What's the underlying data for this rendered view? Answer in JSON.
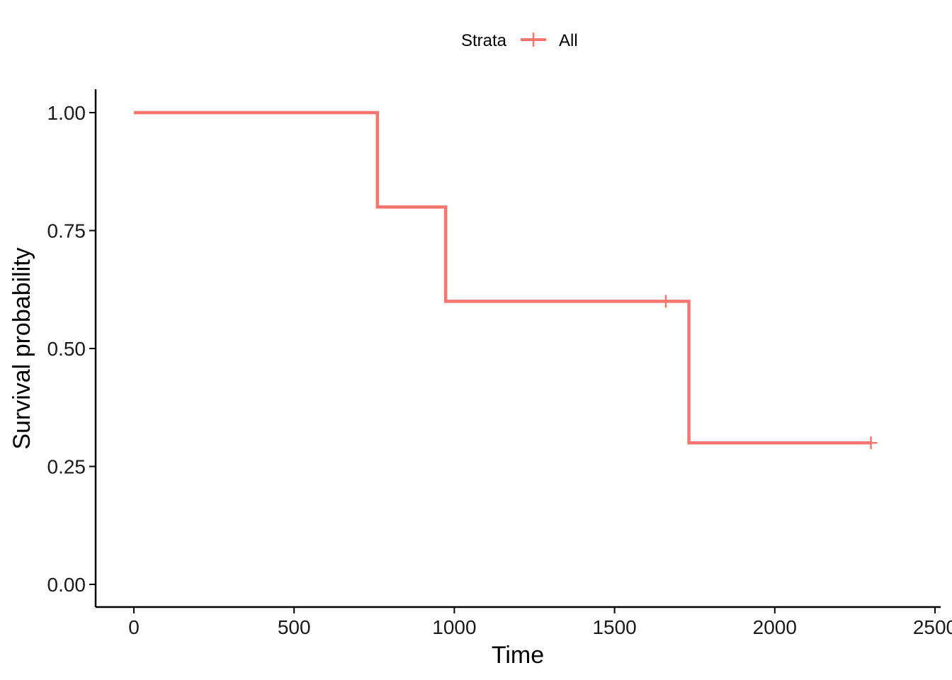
{
  "chart_data": {
    "type": "line",
    "subtype": "kaplan-meier step",
    "xlabel": "Time",
    "ylabel": "Survival probability",
    "xlim": [
      -120,
      2500
    ],
    "ylim": [
      -0.05,
      1.05
    ],
    "x_ticks": [
      0,
      500,
      1000,
      1500,
      2000,
      2500
    ],
    "x_tick_labels": [
      "0",
      "500",
      "1000",
      "1500",
      "2000",
      "2500"
    ],
    "y_ticks": [
      0.0,
      0.25,
      0.5,
      0.75,
      1.0
    ],
    "y_tick_labels": [
      "0.00",
      "0.25",
      "0.50",
      "0.75",
      "1.00"
    ],
    "grid": false,
    "legend": {
      "title": "Strata",
      "position": "top",
      "entries": [
        "All"
      ]
    },
    "series": [
      {
        "name": "All",
        "color": "#F8766D",
        "step_points": [
          {
            "x": 0,
            "y": 1.0
          },
          {
            "x": 760,
            "y": 1.0
          },
          {
            "x": 760,
            "y": 0.8
          },
          {
            "x": 973,
            "y": 0.8
          },
          {
            "x": 973,
            "y": 0.6
          },
          {
            "x": 1732,
            "y": 0.6
          },
          {
            "x": 1732,
            "y": 0.3
          },
          {
            "x": 2300,
            "y": 0.3
          }
        ],
        "censored": [
          {
            "x": 1660,
            "y": 0.6
          },
          {
            "x": 2300,
            "y": 0.3
          }
        ]
      }
    ]
  }
}
